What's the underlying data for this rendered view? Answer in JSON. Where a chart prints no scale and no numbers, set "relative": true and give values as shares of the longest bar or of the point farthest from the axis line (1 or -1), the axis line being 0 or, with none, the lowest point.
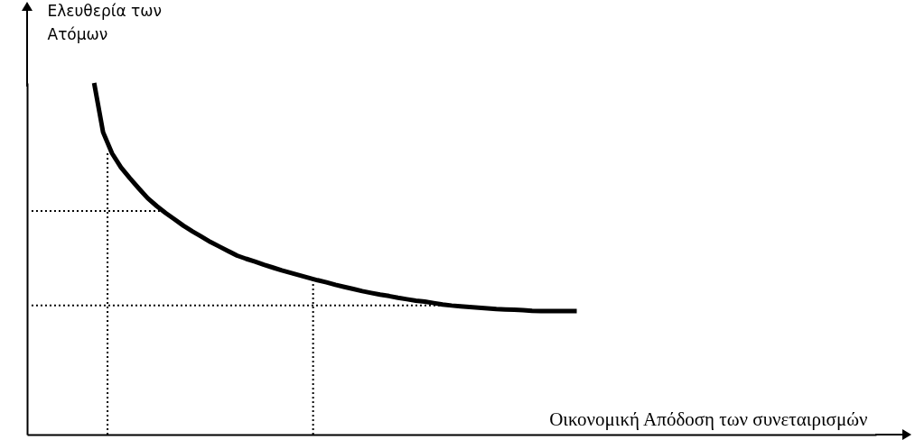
{
  "chart_data": {
    "type": "line",
    "relative": true,
    "xlabel": "Οικονομική Απόδοση των συνεταιρισμών",
    "ylabel": "Ελευθερία των Ατόμων",
    "grid": false,
    "categories": [
      null,
      null,
      null,
      null,
      null,
      null,
      null,
      null,
      null,
      null,
      null,
      null,
      null,
      null,
      null,
      null,
      null,
      null,
      null,
      null,
      null,
      null,
      null,
      null,
      null,
      null,
      null,
      null,
      null,
      null,
      null,
      null,
      null,
      null,
      null,
      null,
      null,
      null,
      null,
      null,
      null,
      null,
      null,
      null,
      null,
      null,
      null,
      null,
      null,
      null,
      null,
      null,
      null,
      null,
      null,
      null,
      null,
      null,
      null,
      null,
      null,
      null,
      null,
      null,
      null,
      null,
      null,
      null,
      null,
      null,
      null,
      null,
      null,
      null,
      null,
      null,
      null,
      null,
      null,
      null,
      null,
      null,
      null,
      null,
      null,
      null,
      null,
      null,
      null,
      null,
      null,
      null,
      null,
      null,
      null
    ],
    "series": [
      {
        "color": "#000000",
        "values": [
          null,
          null,
          null,
          null,
          null,
          null,
          null,
          1,
          0.86,
          0.8,
          0.76,
          0.729,
          0.7,
          0.672,
          0.65,
          0.63,
          0.612,
          0.594,
          0.578,
          0.563,
          0.548,
          0.535,
          0.522,
          0.509,
          0.5,
          0.492,
          0.483,
          0.475,
          0.467,
          0.46,
          0.453,
          0.446,
          0.439,
          0.433,
          0.426,
          0.42,
          0.414,
          0.408,
          0.403,
          0.398,
          0.394,
          0.389,
          0.385,
          0.381,
          0.378,
          0.374,
          0.37,
          0.367,
          0.365,
          0.363,
          0.361,
          0.359,
          0.357,
          0.356,
          0.355,
          0.354,
          0.352,
          0.351,
          0.351,
          0.351,
          0.351,
          0.351,
          null,
          null,
          null,
          null,
          null,
          null,
          null,
          null,
          null,
          null,
          null,
          null,
          null,
          null,
          null,
          null,
          null,
          null,
          null,
          null,
          null,
          null,
          null,
          null,
          null,
          null,
          null,
          null,
          null,
          null,
          null,
          null,
          null
        ]
      }
    ],
    "ref_lines": [
      {
        "axis": "y",
        "value": 0.636,
        "line_style": "dotted",
        "color": "#000000"
      },
      {
        "axis": "y",
        "value": 0.367,
        "line_style": "dotted",
        "color": "#000000"
      }
    ]
  }
}
